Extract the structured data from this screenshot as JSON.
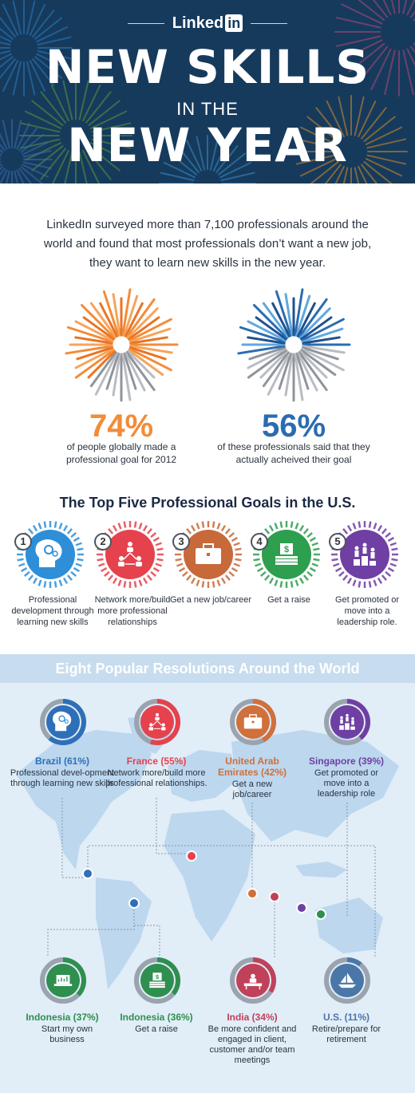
{
  "header": {
    "logo_text": "Linked",
    "logo_in": "in",
    "title_line1": "NEW SKILLS",
    "title_line2": "IN THE",
    "title_line3": "NEW YEAR"
  },
  "intro": "LinkedIn surveyed more than 7,100 professionals around the world and found that most professionals don’t want a new job, they want to learn new skills in the new year.",
  "stats": [
    {
      "value": "74%",
      "description": "of people globally made a professional goal for 2012",
      "fraction": 0.74,
      "color": "#f28c38"
    },
    {
      "value": "56%",
      "description": "of these professionals said that they actually acheived their goal",
      "fraction": 0.56,
      "color": "#2b6cb0"
    }
  ],
  "goals": {
    "title": "The Top Five Professional Goals in the U.S.",
    "items": [
      {
        "number": "1",
        "label": "Professional development through learning new skills",
        "color": "#2e8fd8",
        "icon": "head-gears-icon"
      },
      {
        "number": "2",
        "label": "Network more/build more professional relationships",
        "color": "#e5424d",
        "icon": "network-people-icon"
      },
      {
        "number": "3",
        "label": "Get a new job/career",
        "color": "#c8693a",
        "icon": "briefcase-icon"
      },
      {
        "number": "4",
        "label": "Get a raise",
        "color": "#2e9e4f",
        "icon": "money-icon"
      },
      {
        "number": "5",
        "label": "Get promoted or move into a leadership role.",
        "color": "#6f3fa3",
        "icon": "podium-icon"
      }
    ]
  },
  "world": {
    "title": "Eight Popular Resolutions Around the World",
    "resolutions": [
      {
        "country": "Brazil (61%)",
        "text": "Professional devel-opment through learning new skills",
        "percent": 61,
        "color": "#2e6fb8",
        "icon": "head-gears-icon"
      },
      {
        "country": "France (55%)",
        "text": "Network more/build more professional relationships.",
        "percent": 55,
        "color": "#e5424d",
        "icon": "network-people-icon"
      },
      {
        "country": "United Arab Emirates (42%)",
        "text": "Get a new job/career",
        "percent": 42,
        "color": "#d0703a",
        "icon": "briefcase-icon"
      },
      {
        "country": "Singapore (39%)",
        "text": "Get promoted or move into a leadership role",
        "percent": 39,
        "color": "#6f3fa3",
        "icon": "podium-icon"
      },
      {
        "country": "Indonesia (37%)",
        "text": "Start my own business",
        "percent": 37,
        "color": "#2e8f4f",
        "icon": "laptop-icon"
      },
      {
        "country": "Indonesia (36%)",
        "text": "Get a raise",
        "percent": 36,
        "color": "#2e8f4f",
        "icon": "money-icon"
      },
      {
        "country": "India (34%)",
        "text": "Be more confident and engaged in client, customer and/or team meetings",
        "percent": 34,
        "color": "#c0415a",
        "icon": "meeting-icon"
      },
      {
        "country": "U.S. (11%)",
        "text": "Retire/prepare for retirement",
        "percent": 11,
        "color": "#4a77a8",
        "icon": "sailboat-icon"
      }
    ]
  }
}
